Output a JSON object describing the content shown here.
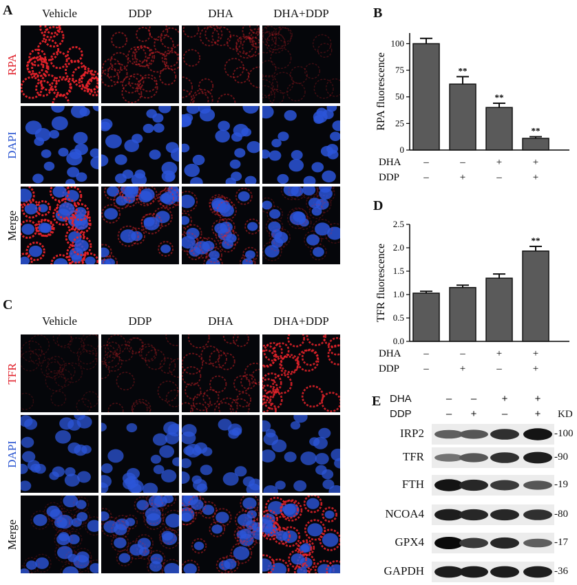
{
  "panel_a": {
    "letter": "A",
    "columns": [
      "Vehicle",
      "DDP",
      "DHA",
      "DHA+DDP"
    ],
    "rows": [
      {
        "label": "RPA",
        "color": "#e0202a"
      },
      {
        "label": "DAPI",
        "color": "#2a55d0"
      },
      {
        "label": "Merge",
        "color": "#111111"
      }
    ]
  },
  "panel_c": {
    "letter": "C",
    "columns": [
      "Vehicle",
      "DDP",
      "DHA",
      "DHA+DDP"
    ],
    "rows": [
      {
        "label": "TFR",
        "color": "#e0202a"
      },
      {
        "label": "DAPI",
        "color": "#2a55d0"
      },
      {
        "label": "Merge",
        "color": "#111111"
      }
    ]
  },
  "chart_data": [
    {
      "panel": "B",
      "type": "bar",
      "ylabel": "RPA  fluorescence",
      "ylim": [
        0,
        110
      ],
      "yticks": [
        "0",
        "25",
        "50",
        "75",
        "100"
      ],
      "values": [
        100,
        62,
        40,
        11
      ],
      "errors": [
        5,
        7,
        4,
        1.5
      ],
      "annotations": [
        "",
        "**",
        "**",
        "**"
      ],
      "conditions": {
        "DHA": [
          "–",
          "–",
          "+",
          "+"
        ],
        "DDP": [
          "–",
          "+",
          "–",
          "+"
        ]
      }
    },
    {
      "panel": "D",
      "type": "bar",
      "ylabel": "TFR  fluorescence",
      "ylim": [
        0,
        2.5
      ],
      "yticks": [
        "0.0",
        "0.5",
        "1.0",
        "1.5",
        "2.0",
        "2.5"
      ],
      "values": [
        1.03,
        1.15,
        1.35,
        1.93
      ],
      "errors": [
        0.04,
        0.05,
        0.09,
        0.1
      ],
      "annotations": [
        "",
        "",
        "",
        "**"
      ],
      "conditions": {
        "DHA": [
          "–",
          "–",
          "+",
          "+"
        ],
        "DDP": [
          "–",
          "+",
          "–",
          "+"
        ]
      }
    }
  ],
  "panel_e": {
    "letter": "E",
    "kd_header": "KD",
    "conditions": {
      "DHA": [
        "–",
        "–",
        "+",
        "+"
      ],
      "DDP": [
        "–",
        "+",
        "–",
        "+"
      ]
    },
    "blots": [
      {
        "name": "IRP2",
        "kd": "100",
        "intensities": [
          0.55,
          0.6,
          0.8,
          0.95
        ]
      },
      {
        "name": "TFR",
        "kd": "90",
        "intensities": [
          0.45,
          0.6,
          0.8,
          0.9
        ]
      },
      {
        "name": "FTH",
        "kd": "19",
        "intensities": [
          0.95,
          0.85,
          0.75,
          0.6
        ]
      },
      {
        "name": "NCOA4",
        "kd": "80",
        "intensities": [
          0.9,
          0.85,
          0.85,
          0.8
        ]
      },
      {
        "name": "GPX4",
        "kd": "17",
        "intensities": [
          1.0,
          0.75,
          0.85,
          0.55
        ]
      },
      {
        "name": "GAPDH",
        "kd": "36",
        "intensities": [
          0.9,
          0.9,
          0.9,
          0.9
        ]
      }
    ]
  }
}
